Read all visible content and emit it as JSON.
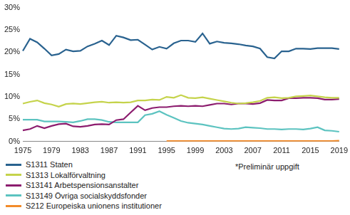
{
  "chart_data": {
    "type": "line",
    "categories": [
      "1975",
      null,
      null,
      null,
      "1979",
      null,
      null,
      null,
      "1983",
      null,
      null,
      null,
      "1987",
      null,
      null,
      null,
      "1991",
      null,
      null,
      null,
      "1995",
      null,
      null,
      null,
      "1999",
      null,
      null,
      null,
      "2003",
      null,
      null,
      null,
      "2007",
      null,
      null,
      null,
      "2011",
      null,
      null,
      null,
      "2015",
      null,
      null,
      null,
      "2019"
    ],
    "series": [
      {
        "name": "S1311 Staten",
        "color": "#29628f",
        "values": [
          20.3,
          23,
          22.2,
          20.8,
          19.3,
          19.6,
          20.6,
          20.2,
          20.3,
          21.3,
          21.9,
          22.6,
          21.6,
          23.7,
          23.3,
          22.7,
          22.8,
          21.7,
          20.6,
          21.2,
          20.8,
          22,
          22.6,
          22.6,
          22.3,
          24.2,
          21.9,
          22.4,
          22.1,
          22,
          21.8,
          21.5,
          21.3,
          20.8,
          18.9,
          18.6,
          20.2,
          20.2,
          20.8,
          20.8,
          20.7,
          20.9,
          20.9,
          20.9,
          20.7
        ]
      },
      {
        "name": "S1313 Lokalförvaltning",
        "color": "#c5d34b",
        "values": [
          8.5,
          8.9,
          9.2,
          8.6,
          8.3,
          7.8,
          8.4,
          8.5,
          8.4,
          8.6,
          8.8,
          8.9,
          8.7,
          8.8,
          8.7,
          8.8,
          9.2,
          9.2,
          9.4,
          9.3,
          10.0,
          9.8,
          10.4,
          9.8,
          9.7,
          9.9,
          9.6,
          9.3,
          9.0,
          8.7,
          8.5,
          8.6,
          8.8,
          9.1,
          9.8,
          9.9,
          9.7,
          9.8,
          10.1,
          10.2,
          10.3,
          10.1,
          9.9,
          9.8,
          9.8
        ]
      },
      {
        "name": "S13141 Arbetspensionsanstalter",
        "color": "#8c1c6e",
        "values": [
          2.5,
          2.8,
          3.5,
          3.0,
          3.5,
          3.9,
          4.0,
          3.4,
          3.3,
          3.5,
          3.8,
          3.9,
          3.8,
          4.8,
          5.0,
          6.5,
          8.0,
          7.0,
          7.5,
          7.7,
          7.7,
          7.9,
          8.0,
          7.9,
          8.0,
          7.9,
          8.2,
          8.5,
          8.5,
          8.3,
          8.5,
          8.5,
          8.4,
          8.6,
          9.3,
          9.2,
          9.2,
          9.7,
          9.7,
          9.8,
          9.8,
          9.7,
          9.4,
          9.4,
          9.5
        ]
      },
      {
        "name": "S13149 Övriga socialskyddsfonder",
        "color": "#5cc3c0",
        "values": [
          4.9,
          4.9,
          4.9,
          4.5,
          4.5,
          4.5,
          4.4,
          4.3,
          4.6,
          5.0,
          5.0,
          4.8,
          4.4,
          4.3,
          4.3,
          4.3,
          4.3,
          5.9,
          6.2,
          6.8,
          6.0,
          5.3,
          4.6,
          4.2,
          4.0,
          3.8,
          3.5,
          3.2,
          2.9,
          2.8,
          2.9,
          3.2,
          3.1,
          3.0,
          2.8,
          2.8,
          2.7,
          2.8,
          2.8,
          2.7,
          2.9,
          3.2,
          2.5,
          2.4,
          2.2
        ]
      },
      {
        "name": "S212 Europeiska unionens institutioner",
        "color": "#f28b2a",
        "values": [
          null,
          null,
          null,
          null,
          null,
          null,
          null,
          null,
          null,
          null,
          null,
          null,
          null,
          null,
          null,
          null,
          null,
          null,
          null,
          null,
          0.1,
          0.1,
          0.1,
          0.1,
          0.1,
          0.1,
          0.1,
          0.1,
          0.1,
          0.1,
          0.1,
          0.1,
          0.1,
          0.1,
          0.1,
          0.1,
          0.1,
          0.1,
          0.1,
          0.1,
          0.1,
          0.1,
          0.1,
          0.1,
          0.2
        ]
      }
    ],
    "ylim": [
      0,
      30
    ],
    "yticks": [
      {
        "value": 0,
        "label": "0%"
      },
      {
        "value": 5,
        "label": "5%"
      },
      {
        "value": 10,
        "label": "10%"
      },
      {
        "value": 15,
        "label": "15%"
      },
      {
        "value": 20,
        "label": "20%"
      },
      {
        "value": 25,
        "label": "25%"
      },
      {
        "value": 30,
        "label": "30%"
      }
    ],
    "grid": false,
    "legend": "bottom",
    "annotation": "*Preliminär uppgift"
  }
}
